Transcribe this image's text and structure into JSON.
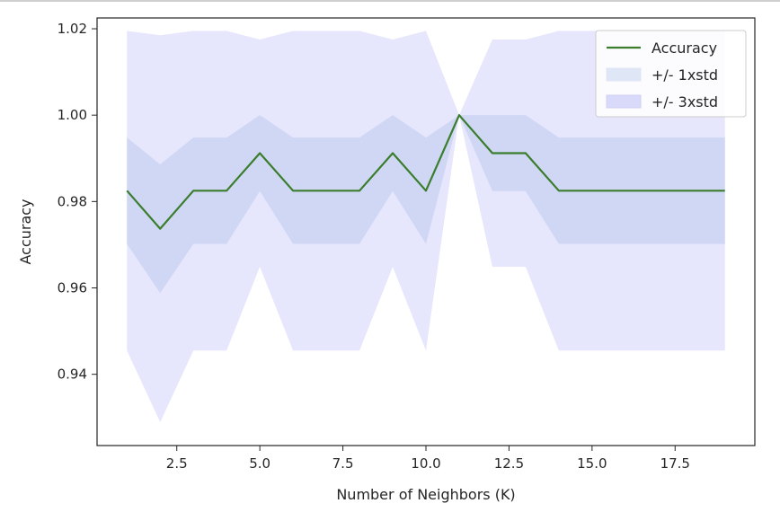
{
  "chart_data": {
    "type": "line",
    "title": "",
    "xlabel": "Number of Neighbors (K)",
    "ylabel": "Accuracy",
    "xlim": [
      0.1,
      19.9
    ],
    "ylim": [
      0.9235,
      1.0225
    ],
    "xticks": [
      2.5,
      5.0,
      7.5,
      10.0,
      12.5,
      15.0,
      17.5
    ],
    "xtick_labels": [
      "2.5",
      "5.0",
      "7.5",
      "10.0",
      "12.5",
      "15.0",
      "17.5"
    ],
    "yticks": [
      0.94,
      0.96,
      0.98,
      1.0,
      1.02
    ],
    "ytick_labels": [
      "0.94",
      "0.96",
      "0.98",
      "1.00",
      "1.02"
    ],
    "grid": false,
    "legend_position": "top-right",
    "x": [
      1,
      2,
      3,
      4,
      5,
      6,
      7,
      8,
      9,
      10,
      11,
      12,
      13,
      14,
      15,
      16,
      17,
      18,
      19
    ],
    "series": [
      {
        "name": "Accuracy",
        "kind": "line",
        "color": "#3a7d2c",
        "values": [
          0.9825,
          0.9737,
          0.9825,
          0.9825,
          0.9912,
          0.9825,
          0.9825,
          0.9825,
          0.9912,
          0.9825,
          1.0,
          0.9912,
          0.9912,
          0.9825,
          0.9825,
          0.9825,
          0.9825,
          0.9825,
          0.9825
        ]
      },
      {
        "name": "+/- 1xstd",
        "kind": "band",
        "color": "#dfe6f5",
        "lower": [
          0.9702,
          0.9588,
          0.9702,
          0.9702,
          0.9824,
          0.9702,
          0.9702,
          0.9702,
          0.9824,
          0.9702,
          1.0,
          0.9824,
          0.9824,
          0.9702,
          0.9702,
          0.9702,
          0.9702,
          0.9702,
          0.9702
        ],
        "upper": [
          0.9948,
          0.9886,
          0.9948,
          0.9948,
          1.0,
          0.9948,
          0.9948,
          0.9948,
          1.0,
          0.9948,
          1.0,
          1.0,
          1.0,
          0.9948,
          0.9948,
          0.9948,
          0.9948,
          0.9948,
          0.9948
        ]
      },
      {
        "name": "+/- 3xstd",
        "kind": "band",
        "color": "#e2e2fb",
        "lower": [
          0.9455,
          0.9289,
          0.9455,
          0.9455,
          0.9649,
          0.9455,
          0.9455,
          0.9455,
          0.9649,
          0.9455,
          1.0,
          0.9649,
          0.9649,
          0.9455,
          0.9455,
          0.9455,
          0.9455,
          0.9455,
          0.9455
        ],
        "upper": [
          1.0195,
          1.0185,
          1.0195,
          1.0195,
          1.0175,
          1.0195,
          1.0195,
          1.0195,
          1.0175,
          1.0195,
          1.0,
          1.0175,
          1.0175,
          1.0195,
          1.0195,
          1.0195,
          1.0195,
          1.0195,
          1.0195
        ]
      }
    ]
  }
}
